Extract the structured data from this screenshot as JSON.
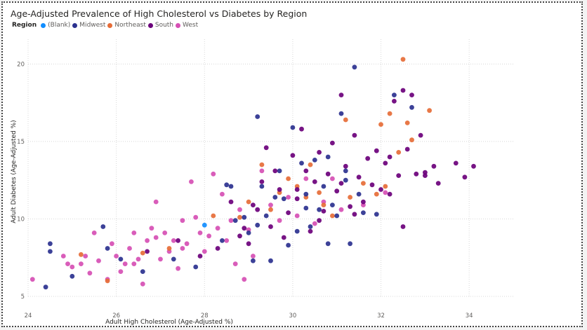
{
  "chart_data": {
    "type": "scatter",
    "title": "Age-Adjusted Prevalence of High Cholesterol vs Diabetes by Region",
    "xlabel": "Adult High Cholesterol (Age-Adjusted %)",
    "ylabel": "Adult Diabetes (Age-Adjusted %)",
    "xlim": [
      24,
      35
    ],
    "ylim": [
      5,
      21.6
    ],
    "xticks": [
      24,
      26,
      28,
      30,
      32,
      34
    ],
    "yticks": [
      5,
      10,
      15,
      20
    ],
    "grid": true,
    "legend": {
      "title": "Region",
      "placement": "top-left"
    },
    "series": [
      {
        "name": "(Blank)",
        "color": "#118DFF",
        "points": [
          [
            28,
            9.6
          ]
        ]
      },
      {
        "name": "Midwest",
        "color": "#2B318F",
        "points": [
          [
            24.4,
            5.6
          ],
          [
            24.5,
            8.4
          ],
          [
            24.5,
            7.9
          ],
          [
            25,
            6.3
          ],
          [
            25.7,
            9.5
          ],
          [
            25.8,
            8.1
          ],
          [
            26.1,
            7.4
          ],
          [
            26.6,
            6.6
          ],
          [
            27.3,
            7.4
          ],
          [
            27.8,
            6.9
          ],
          [
            28.4,
            8.6
          ],
          [
            28.5,
            12.2
          ],
          [
            28.6,
            12.1
          ],
          [
            28.7,
            9.9
          ],
          [
            29,
            9.1
          ],
          [
            29.1,
            7.3
          ],
          [
            29.2,
            16.6
          ],
          [
            29.3,
            12.1
          ],
          [
            29.4,
            10.2
          ],
          [
            29.5,
            7.3
          ],
          [
            29.7,
            13.1
          ],
          [
            29.8,
            11.3
          ],
          [
            29.9,
            8.3
          ],
          [
            30,
            15.9
          ],
          [
            30.1,
            9.2
          ],
          [
            30.2,
            13.6
          ],
          [
            30.3,
            11.6
          ],
          [
            30.4,
            9.5
          ],
          [
            30.5,
            13.8
          ],
          [
            30.6,
            10.6
          ],
          [
            30.7,
            12.1
          ],
          [
            30.8,
            8.4
          ],
          [
            30.8,
            14
          ],
          [
            31,
            10.2
          ],
          [
            31.1,
            16.8
          ],
          [
            31.2,
            12.5
          ],
          [
            31.3,
            8.4
          ],
          [
            31.4,
            19.8
          ],
          [
            31.5,
            11.6
          ],
          [
            31.6,
            10.4
          ],
          [
            31.9,
            10.3
          ],
          [
            32.3,
            18
          ],
          [
            32.7,
            17.2
          ],
          [
            29.6,
            11.4
          ],
          [
            30.9,
            10.9
          ],
          [
            28.9,
            10.1
          ],
          [
            29.2,
            9.6
          ],
          [
            30.3,
            10.7
          ],
          [
            31.2,
            13.1
          ]
        ]
      },
      {
        "name": "Northeast",
        "color": "#E66C37",
        "points": [
          [
            25.2,
            7.7
          ],
          [
            25.8,
            6
          ],
          [
            26.6,
            7.8
          ],
          [
            27.2,
            8.1
          ],
          [
            28.2,
            10.2
          ],
          [
            28.8,
            10.1
          ],
          [
            29,
            11.1
          ],
          [
            29.3,
            13.5
          ],
          [
            29.7,
            11.7
          ],
          [
            29.9,
            12.6
          ],
          [
            30.1,
            12.1
          ],
          [
            30.3,
            11.4
          ],
          [
            30.4,
            13.5
          ],
          [
            30.6,
            11.7
          ],
          [
            30.9,
            10.2
          ],
          [
            31.2,
            16.4
          ],
          [
            31.3,
            11.4
          ],
          [
            31.6,
            12.3
          ],
          [
            31.9,
            11.6
          ],
          [
            32,
            16.1
          ],
          [
            32.2,
            16.8
          ],
          [
            32.5,
            20.3
          ],
          [
            32.6,
            16.2
          ],
          [
            32.7,
            15.1
          ],
          [
            33.1,
            17
          ],
          [
            32.4,
            14.3
          ],
          [
            32.1,
            12.1
          ],
          [
            29.5,
            10.6
          ],
          [
            30.7,
            10.9
          ]
        ]
      },
      {
        "name": "South",
        "color": "#6B007B",
        "points": [
          [
            26.7,
            7.9
          ],
          [
            27.4,
            8.6
          ],
          [
            27.9,
            7.6
          ],
          [
            28.3,
            8.1
          ],
          [
            28.6,
            11.1
          ],
          [
            28.9,
            9.4
          ],
          [
            29,
            8.4
          ],
          [
            29.2,
            10.6
          ],
          [
            29.3,
            12.4
          ],
          [
            29.4,
            14.6
          ],
          [
            29.5,
            9.5
          ],
          [
            29.6,
            13.1
          ],
          [
            29.7,
            11.9
          ],
          [
            29.8,
            8.8
          ],
          [
            29.9,
            10.4
          ],
          [
            30,
            14.1
          ],
          [
            30.1,
            11.3
          ],
          [
            30.2,
            15.8
          ],
          [
            30.3,
            13.1
          ],
          [
            30.4,
            9.2
          ],
          [
            30.5,
            12.4
          ],
          [
            30.6,
            14.3
          ],
          [
            30.7,
            10.5
          ],
          [
            30.8,
            12.9
          ],
          [
            30.9,
            14.9
          ],
          [
            31,
            11.8
          ],
          [
            31.1,
            18
          ],
          [
            31.2,
            13.4
          ],
          [
            31.3,
            10.8
          ],
          [
            31.4,
            15.4
          ],
          [
            31.5,
            12.7
          ],
          [
            31.6,
            11.1
          ],
          [
            31.7,
            13.9
          ],
          [
            31.8,
            12.2
          ],
          [
            31.9,
            14.4
          ],
          [
            32,
            11.9
          ],
          [
            32.1,
            13.6
          ],
          [
            32.2,
            11.6
          ],
          [
            32.3,
            17.6
          ],
          [
            32.4,
            12.8
          ],
          [
            32.5,
            18.3
          ],
          [
            32.6,
            14.5
          ],
          [
            32.7,
            18
          ],
          [
            32.8,
            12.9
          ],
          [
            32.9,
            15.4
          ],
          [
            33,
            13
          ],
          [
            33.2,
            13.4
          ],
          [
            33.3,
            12.3
          ],
          [
            33.7,
            13.6
          ],
          [
            33.9,
            12.7
          ],
          [
            34.1,
            13.4
          ],
          [
            32.5,
            9.5
          ],
          [
            31.4,
            10.3
          ],
          [
            30.1,
            11.9
          ],
          [
            29.1,
            10.9
          ],
          [
            28.8,
            8.9
          ],
          [
            30.6,
            9.9
          ],
          [
            31.1,
            12.3
          ],
          [
            32.2,
            14
          ],
          [
            33,
            12.8
          ]
        ]
      },
      {
        "name": "West",
        "color": "#D64FB4",
        "points": [
          [
            24.1,
            6.1
          ],
          [
            24.8,
            7.6
          ],
          [
            24.9,
            7.1
          ],
          [
            25,
            6.9
          ],
          [
            25.2,
            7.1
          ],
          [
            25.4,
            6.5
          ],
          [
            25.5,
            9.1
          ],
          [
            25.6,
            7.3
          ],
          [
            25.8,
            6.1
          ],
          [
            25.9,
            8.4
          ],
          [
            26,
            7.6
          ],
          [
            26.1,
            6.6
          ],
          [
            26.2,
            7.1
          ],
          [
            26.3,
            8.1
          ],
          [
            26.4,
            9.1
          ],
          [
            26.5,
            7.4
          ],
          [
            26.6,
            5.8
          ],
          [
            26.7,
            8.6
          ],
          [
            26.8,
            9.4
          ],
          [
            26.9,
            11.1
          ],
          [
            27,
            7.4
          ],
          [
            27.1,
            9.1
          ],
          [
            27.2,
            7.9
          ],
          [
            27.3,
            8.6
          ],
          [
            27.4,
            6.8
          ],
          [
            27.5,
            9.9
          ],
          [
            27.6,
            8.4
          ],
          [
            27.7,
            12.4
          ],
          [
            27.8,
            10.1
          ],
          [
            27.9,
            9.1
          ],
          [
            28,
            7.9
          ],
          [
            28.1,
            8.9
          ],
          [
            28.2,
            12.9
          ],
          [
            28.3,
            9.4
          ],
          [
            28.4,
            11.6
          ],
          [
            28.5,
            8.6
          ],
          [
            28.6,
            9.9
          ],
          [
            28.7,
            7.1
          ],
          [
            28.8,
            10.6
          ],
          [
            28.9,
            6.1
          ],
          [
            29,
            9.3
          ],
          [
            29.1,
            7.6
          ],
          [
            29.3,
            13.1
          ],
          [
            29.5,
            10.9
          ],
          [
            29.7,
            9.9
          ],
          [
            29.9,
            11.4
          ],
          [
            30.1,
            10.2
          ],
          [
            30.3,
            12.6
          ],
          [
            30.5,
            9.7
          ],
          [
            30.7,
            11.1
          ],
          [
            30.9,
            12.6
          ],
          [
            31.1,
            10.6
          ],
          [
            31.6,
            10.9
          ],
          [
            32.1,
            11.7
          ],
          [
            26.4,
            7.1
          ],
          [
            27.5,
            8.1
          ],
          [
            25.3,
            7.6
          ],
          [
            26.9,
            8.8
          ]
        ]
      }
    ]
  }
}
